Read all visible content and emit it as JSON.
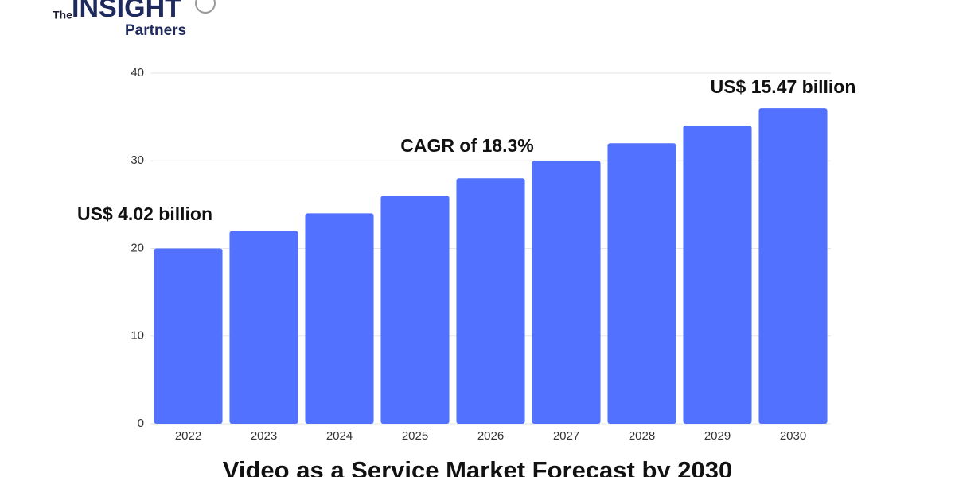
{
  "logo": {
    "prefix": "The",
    "name": "INSIGHT",
    "suffix": "Partners"
  },
  "chart_data": {
    "type": "bar",
    "title": "Video as a Service Market Forecast by 2030",
    "categories": [
      "2022",
      "2023",
      "2024",
      "2025",
      "2026",
      "2027",
      "2028",
      "2029",
      "2030"
    ],
    "values": [
      20,
      22,
      24,
      26,
      28,
      30,
      32,
      34,
      36
    ],
    "color": "#5271ff",
    "ylim": [
      0,
      40
    ],
    "yticks": [
      0,
      10,
      20,
      30,
      40
    ],
    "grid": true,
    "annotations": [
      "US$ 4.02 billion",
      "CAGR of 18.3%",
      "US$ 15.47 billion"
    ]
  }
}
